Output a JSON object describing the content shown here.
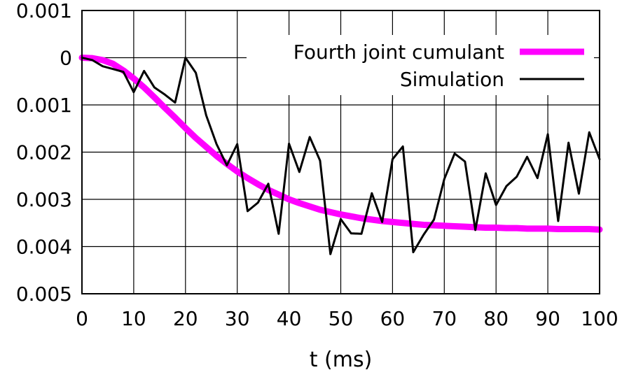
{
  "chart_data": {
    "type": "line",
    "title": "",
    "xlabel": "t (ms)",
    "ylabel": "",
    "xlim": [
      0,
      100
    ],
    "ylim": [
      -0.005,
      0.001
    ],
    "x_ticks": [
      0,
      10,
      20,
      30,
      40,
      50,
      60,
      70,
      80,
      90,
      100
    ],
    "x_tick_labels": [
      "0",
      "10",
      "20",
      "30",
      "40",
      "50",
      "60",
      "70",
      "80",
      "90",
      "100"
    ],
    "y_ticks": [
      0.001,
      0,
      -0.001,
      -0.002,
      -0.003,
      -0.004,
      -0.005
    ],
    "y_tick_labels": [
      "0.001",
      "0",
      "0.001",
      "0.002",
      "0.003",
      "0.004",
      "0.005"
    ],
    "grid": true,
    "legend_position": "top-right",
    "series": [
      {
        "name": "Fourth joint cumulant",
        "color": "#ff00ff",
        "x": [
          0,
          2,
          4,
          6,
          8,
          10,
          12,
          14,
          16,
          18,
          20,
          22,
          24,
          26,
          28,
          30,
          32,
          34,
          36,
          38,
          40,
          42,
          44,
          46,
          48,
          50,
          52,
          54,
          56,
          58,
          60,
          62,
          64,
          66,
          68,
          70,
          72,
          74,
          76,
          78,
          80,
          82,
          84,
          86,
          88,
          90,
          92,
          94,
          96,
          98,
          100
        ],
        "y": [
          0.0,
          -1e-05,
          -5e-05,
          -0.00013,
          -0.00027,
          -0.00044,
          -0.00063,
          -0.00084,
          -0.00106,
          -0.00127,
          -0.00149,
          -0.0017,
          -0.00189,
          -0.00208,
          -0.00225,
          -0.00241,
          -0.00255,
          -0.00268,
          -0.0028,
          -0.0029,
          -0.003,
          -0.00308,
          -0.00315,
          -0.00322,
          -0.00327,
          -0.00332,
          -0.00336,
          -0.0034,
          -0.00343,
          -0.00346,
          -0.00348,
          -0.0035,
          -0.00352,
          -0.00354,
          -0.00355,
          -0.00356,
          -0.00357,
          -0.00358,
          -0.00359,
          -0.0036,
          -0.0036,
          -0.00361,
          -0.00361,
          -0.00362,
          -0.00362,
          -0.00362,
          -0.00363,
          -0.00363,
          -0.00363,
          -0.00363,
          -0.00364
        ]
      },
      {
        "name": "Simulation",
        "color": "#000000",
        "x": [
          0,
          2,
          4,
          6,
          8,
          10,
          12,
          14,
          16,
          18,
          20,
          22,
          24,
          26,
          28,
          30,
          32,
          34,
          36,
          38,
          40,
          42,
          44,
          46,
          48,
          50,
          52,
          54,
          56,
          58,
          60,
          62,
          64,
          66,
          68,
          70,
          72,
          74,
          76,
          78,
          80,
          82,
          84,
          86,
          88,
          90,
          92,
          94,
          96,
          98,
          100
        ],
        "y": [
          0.0,
          -5e-05,
          -0.00018,
          -0.00024,
          -0.0003,
          -0.00073,
          -0.00028,
          -0.00063,
          -0.00078,
          -0.00095,
          0.0,
          -0.00032,
          -0.00122,
          -0.00183,
          -0.00228,
          -0.00183,
          -0.00325,
          -0.00307,
          -0.00267,
          -0.00373,
          -0.00182,
          -0.00242,
          -0.00168,
          -0.00218,
          -0.00416,
          -0.00342,
          -0.00372,
          -0.00373,
          -0.00287,
          -0.00348,
          -0.00215,
          -0.00188,
          -0.00412,
          -0.00375,
          -0.00343,
          -0.00257,
          -0.00203,
          -0.0022,
          -0.00365,
          -0.00245,
          -0.00312,
          -0.00272,
          -0.00252,
          -0.0021,
          -0.00255,
          -0.00162,
          -0.00346,
          -0.0018,
          -0.00288,
          -0.00158,
          -0.00215
        ]
      }
    ]
  }
}
